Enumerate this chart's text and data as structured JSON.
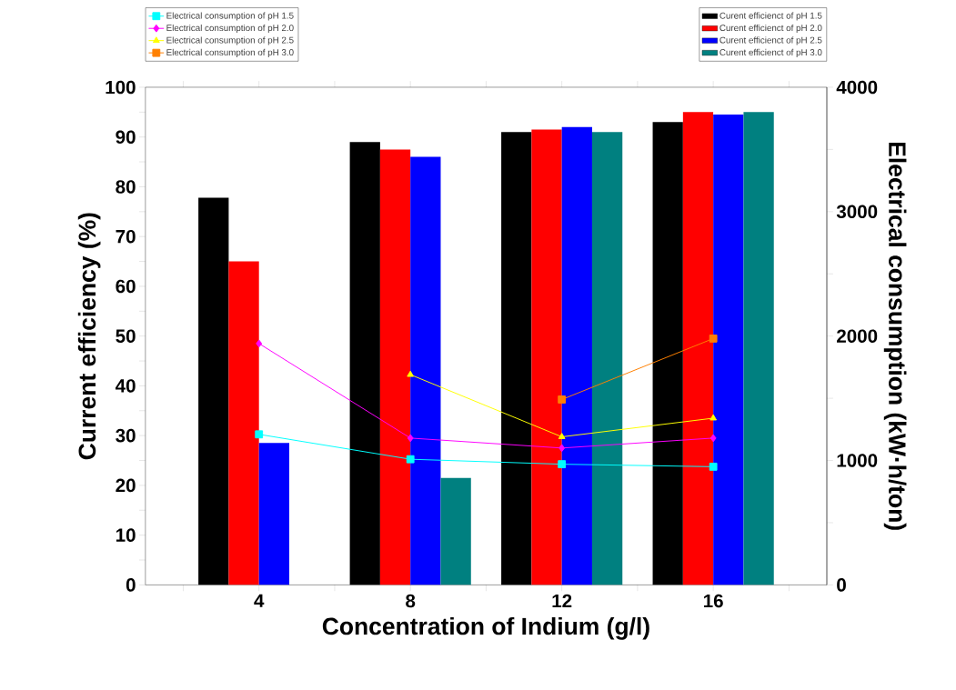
{
  "chart_data": {
    "type": "bar",
    "xlabel": "Concentration of Indium (g/l)",
    "ylabel": "Current efficiency (%)",
    "y2label": "Electrical consumption (kW·h/ton)",
    "x": [
      4,
      8,
      12,
      16
    ],
    "series": [
      {
        "name": "Curent efficienct of pH 1.5",
        "color": "#000000",
        "values": [
          77.8,
          89,
          91,
          93
        ]
      },
      {
        "name": "Curent efficienct of pH 2.0",
        "color": "#ff0000",
        "values": [
          65,
          87.5,
          91.5,
          95
        ]
      },
      {
        "name": "Curent efficienct of pH 2.5",
        "color": "#0000ff",
        "values": [
          28.5,
          86,
          92,
          94.5
        ]
      },
      {
        "name": "Curent efficienct of pH 3.0",
        "color": "#008080",
        "values": [
          null,
          21.5,
          91,
          95
        ]
      },
      {
        "name": "Electrical consumption of pH 1.5",
        "type": "line",
        "axis": "y2",
        "marker": "square",
        "color": "#00ffff",
        "values": [
          1210,
          1010,
          970,
          950
        ]
      },
      {
        "name": "Electrical consumption of pH 2.0",
        "type": "line",
        "axis": "y2",
        "marker": "diamond",
        "color": "#ff00ff",
        "values": [
          1940,
          1180,
          1100,
          1180
        ]
      },
      {
        "name": "Electrical consumption of pH 2.5",
        "type": "line",
        "axis": "y2",
        "marker": "triangle",
        "color": "#ffff00",
        "values": [
          null,
          1690,
          1190,
          1340
        ]
      },
      {
        "name": "Electrical consumption of pH 3.0",
        "type": "line",
        "axis": "y2",
        "marker": "square",
        "color": "#ff8000",
        "values": [
          null,
          null,
          1490,
          1980
        ]
      }
    ],
    "xlim": [
      1,
      19
    ],
    "xticks": [
      {
        "value": 2,
        "label": null
      },
      4,
      {
        "value": 6,
        "label": null
      },
      8,
      {
        "value": 10,
        "label": null
      },
      12,
      {
        "value": 14,
        "label": null
      },
      16,
      {
        "value": 18,
        "label": null
      }
    ],
    "ylim": [
      0,
      100
    ],
    "yticks": [
      0,
      {
        "value": 5,
        "label": null
      },
      10,
      {
        "value": 15,
        "label": null
      },
      20,
      {
        "value": 25,
        "label": null
      },
      30,
      {
        "value": 35,
        "label": null
      },
      40,
      {
        "value": 45,
        "label": null
      },
      50,
      {
        "value": 55,
        "label": null
      },
      60,
      {
        "value": 65,
        "label": null
      },
      70,
      {
        "value": 75,
        "label": null
      },
      80,
      {
        "value": 85,
        "label": null
      },
      90,
      {
        "value": 95,
        "label": null
      },
      100
    ],
    "y2lim": [
      0,
      4000
    ],
    "y2ticks": [
      0,
      {
        "value": 500,
        "label": null
      },
      1000,
      {
        "value": 1500,
        "label": null
      },
      2000,
      {
        "value": 2500,
        "label": null
      },
      3000,
      {
        "value": 3500,
        "label": null
      },
      4000
    ],
    "legend": "top",
    "grid": false
  }
}
